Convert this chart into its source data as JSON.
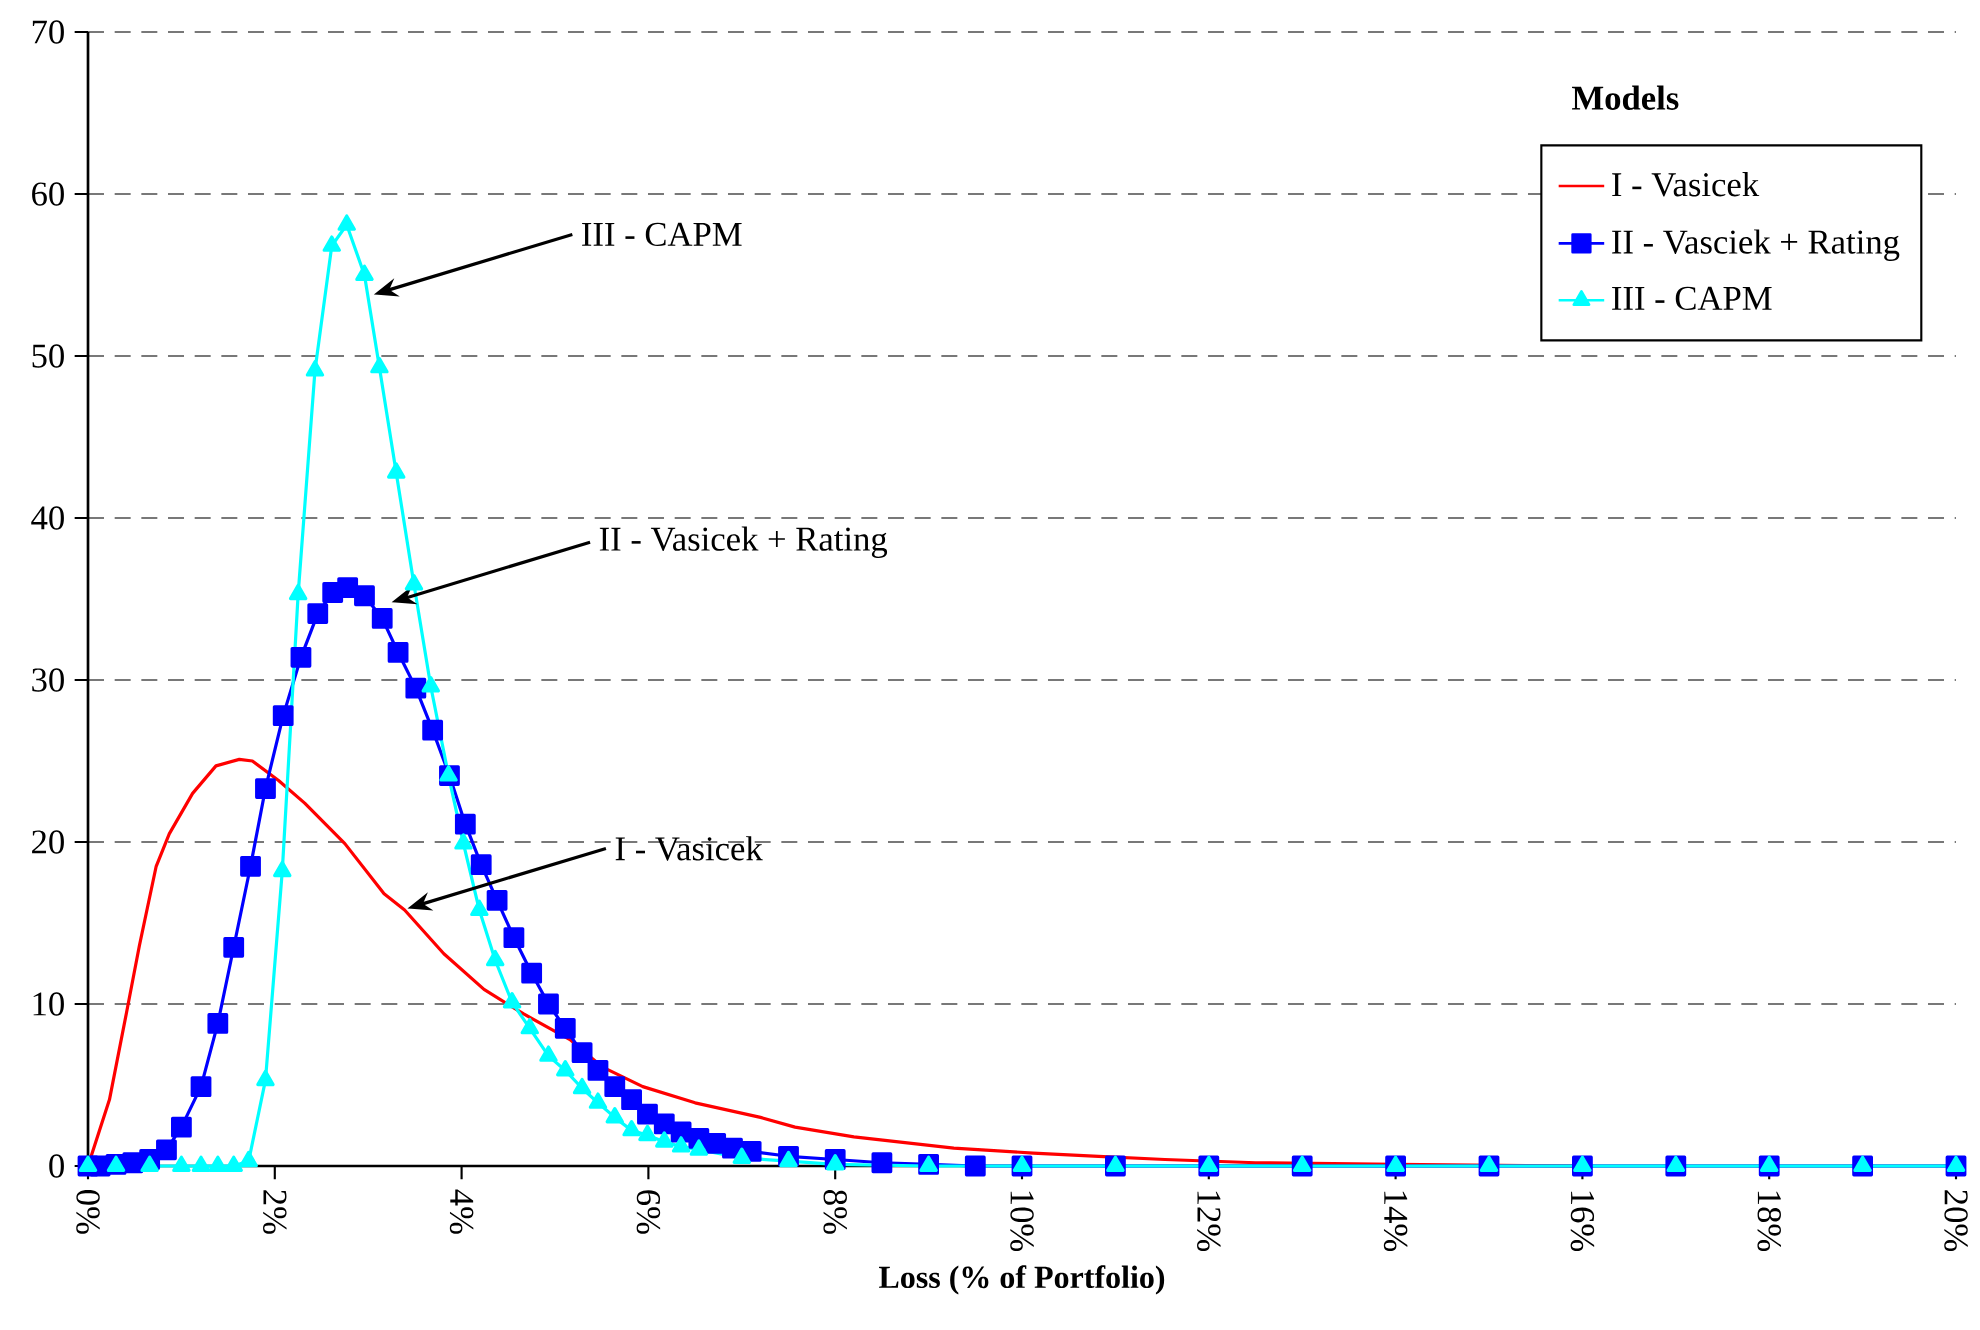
{
  "chart_data": {
    "type": "line",
    "xlabel": "Loss (% of Portfolio)",
    "legend_title": "Models",
    "legend": "top right",
    "grid": "y",
    "xlim": [
      0,
      20
    ],
    "ylim": [
      0,
      70
    ],
    "xticks": [
      {
        "value": 0,
        "label": "0%"
      },
      {
        "value": 2,
        "label": "2%"
      },
      {
        "value": 4,
        "label": "4%"
      },
      {
        "value": 6,
        "label": "6%"
      },
      {
        "value": 8,
        "label": "8%"
      },
      {
        "value": 10,
        "label": "10%"
      },
      {
        "value": 12,
        "label": "12%"
      },
      {
        "value": 14,
        "label": "14%"
      },
      {
        "value": 16,
        "label": "16%"
      },
      {
        "value": 18,
        "label": "18%"
      },
      {
        "value": 20,
        "label": "20%"
      }
    ],
    "yticks": [
      0,
      10,
      20,
      30,
      40,
      50,
      60,
      70
    ],
    "series": [
      {
        "name": "I - Vasicek",
        "color": "#ff0000",
        "marker": "none",
        "x": [
          0,
          0.23,
          0.41,
          0.55,
          0.73,
          0.87,
          1.12,
          1.37,
          1.62,
          1.76,
          2.04,
          2.32,
          2.75,
          3.17,
          3.39,
          3.81,
          4.24,
          4.66,
          5.16,
          5.51,
          5.94,
          6.5,
          7.2,
          7.57,
          8.2,
          9.27,
          10.12,
          10.82,
          11.53,
          12.5,
          14,
          16
        ],
        "values": [
          0,
          4.1,
          9.4,
          13.6,
          18.5,
          20.5,
          23.0,
          24.7,
          25.1,
          25.0,
          23.8,
          22.4,
          19.9,
          16.8,
          15.8,
          13.1,
          10.9,
          9.4,
          7.8,
          6.1,
          4.9,
          3.9,
          3.0,
          2.4,
          1.8,
          1.1,
          0.8,
          0.6,
          0.4,
          0.2,
          0.1,
          0
        ]
      },
      {
        "name": "II - Vasciek + Rating",
        "color": "#0000ff",
        "marker": "square",
        "x": [
          0,
          0.13,
          0.3,
          0.48,
          0.66,
          0.84,
          1.0,
          1.21,
          1.39,
          1.56,
          1.74,
          1.9,
          2.09,
          2.28,
          2.46,
          2.62,
          2.78,
          2.96,
          3.15,
          3.32,
          3.51,
          3.69,
          3.87,
          4.04,
          4.21,
          4.38,
          4.56,
          4.75,
          4.93,
          5.11,
          5.29,
          5.46,
          5.64,
          5.82,
          5.99,
          6.17,
          6.35,
          6.54,
          6.72,
          6.9,
          7.1,
          7.5,
          8,
          8.5,
          9,
          9.5,
          10,
          11,
          12,
          13,
          14,
          15,
          16,
          17,
          18,
          19,
          20
        ],
        "values": [
          0,
          0,
          0.1,
          0.2,
          0.4,
          1.0,
          2.4,
          4.9,
          8.8,
          13.5,
          18.5,
          23.3,
          27.8,
          31.4,
          34.1,
          35.4,
          35.7,
          35.2,
          33.8,
          31.7,
          29.5,
          26.9,
          24.1,
          21.1,
          18.6,
          16.4,
          14.1,
          11.9,
          10.0,
          8.5,
          7.0,
          5.9,
          4.9,
          4.1,
          3.2,
          2.6,
          2.1,
          1.7,
          1.4,
          1.1,
          0.9,
          0.6,
          0.4,
          0.2,
          0.1,
          0,
          0,
          0,
          0,
          0,
          0,
          0,
          0,
          0,
          0,
          0,
          0
        ]
      },
      {
        "name": "III - CAPM",
        "color": "#00ffff",
        "marker": "triangle",
        "x": [
          0,
          0.3,
          0.66,
          1.0,
          1.21,
          1.39,
          1.56,
          1.72,
          1.9,
          2.08,
          2.25,
          2.43,
          2.61,
          2.77,
          2.96,
          3.12,
          3.3,
          3.49,
          3.67,
          3.86,
          4.02,
          4.19,
          4.36,
          4.54,
          4.73,
          4.93,
          5.11,
          5.29,
          5.46,
          5.64,
          5.82,
          5.99,
          6.17,
          6.35,
          6.54,
          7,
          7.5,
          8,
          9,
          10,
          11,
          12,
          13,
          14,
          15,
          16,
          17,
          18,
          19,
          20
        ],
        "values": [
          0,
          0,
          0,
          0,
          0,
          0,
          0,
          0.3,
          5.3,
          18.2,
          35.3,
          49.1,
          56.8,
          58.1,
          55.0,
          49.3,
          42.8,
          35.9,
          29.6,
          24.1,
          19.9,
          15.8,
          12.7,
          10.1,
          8.5,
          6.8,
          5.9,
          4.8,
          3.9,
          3.0,
          2.2,
          1.9,
          1.5,
          1.2,
          1.0,
          0.5,
          0.3,
          0.1,
          0,
          0,
          0,
          0,
          0,
          0,
          0,
          0,
          0,
          0,
          0,
          0
        ]
      }
    ],
    "annotations": [
      {
        "text": "III - CAPM",
        "x": 3.06,
        "y": 53.8
      },
      {
        "text": "II - Vasicek + Rating",
        "x": 3.25,
        "y": 34.8
      },
      {
        "text": "I - Vasicek",
        "x": 3.42,
        "y": 15.9
      }
    ]
  }
}
